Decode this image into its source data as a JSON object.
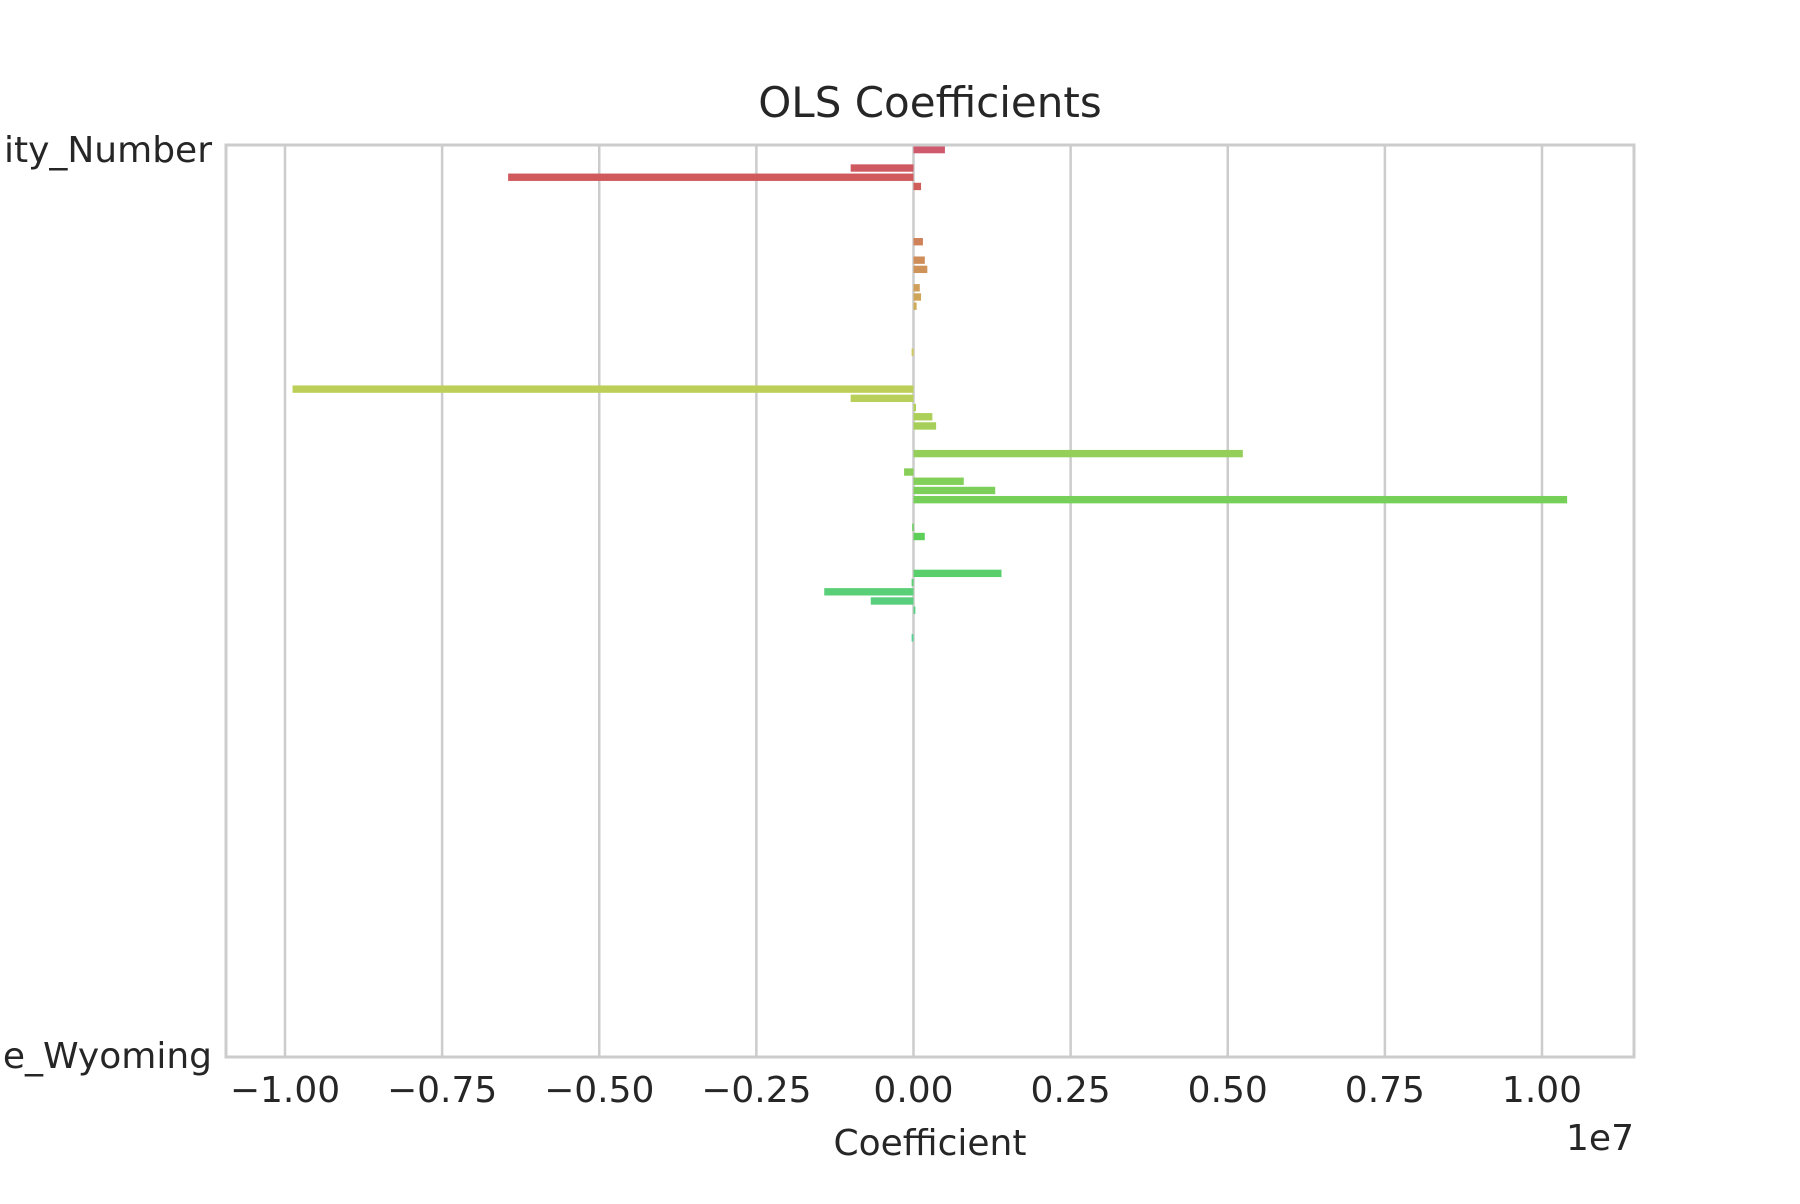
{
  "chart_data": {
    "type": "bar",
    "orientation": "horizontal",
    "title": "OLS Coefficients",
    "xlabel": "Coefficient",
    "ylabel": "",
    "x_offset_text": "1e7",
    "xlim": [
      -1.0,
      1.02
    ],
    "xticks": [
      -1.0,
      -0.75,
      -0.5,
      -0.25,
      0.0,
      0.25,
      0.5,
      0.75,
      1.0
    ],
    "xtick_labels": [
      "−1.00",
      "−0.75",
      "−0.50",
      "−0.25",
      "0.00",
      "0.25",
      "0.50",
      "0.75",
      "1.00"
    ],
    "grid": "x-axis",
    "y_first_label": "ity_Number",
    "y_last_label": "e_Wyoming",
    "y_categories_count": 99,
    "palette_start": "#e8889a",
    "values": [
      0.05,
      0.0,
      -0.1,
      -0.645,
      0.012,
      0.0,
      0.0,
      0.0,
      0.0,
      0.0,
      0.015,
      0.0,
      0.018,
      0.022,
      0.0,
      0.01,
      0.012,
      0.005,
      0.0,
      0.0,
      0.0,
      0.0,
      -0.003,
      0.0,
      0.0,
      0.0,
      -0.988,
      -0.1,
      0.004,
      0.03,
      0.036,
      0.0,
      0.0,
      0.524,
      0.0,
      -0.015,
      0.08,
      0.13,
      1.04,
      0.0,
      0.0,
      -0.002,
      0.018,
      0.0,
      0.0,
      0.0,
      0.14,
      -0.003,
      -0.142,
      -0.068,
      0.003,
      0.0,
      0.0,
      -0.003,
      0,
      0,
      0,
      0,
      0,
      0,
      0,
      0,
      0,
      0,
      0,
      0,
      0,
      0,
      0,
      0,
      0,
      0,
      0,
      0,
      0,
      0,
      0,
      0,
      0,
      0,
      0,
      0,
      0,
      0,
      0,
      0,
      0,
      0,
      0,
      0,
      0,
      0,
      0,
      0,
      0,
      0,
      0,
      0,
      0
    ]
  }
}
